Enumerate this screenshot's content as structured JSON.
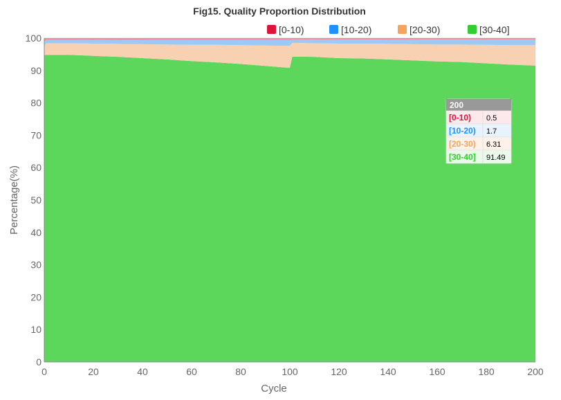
{
  "chart_data": {
    "type": "area",
    "stacked": true,
    "title": "Fig15. Quality Proportion Distribution",
    "xlabel": "Cycle",
    "ylabel": "Percentage(%)",
    "xlim": [
      0,
      200
    ],
    "ylim": [
      0,
      100
    ],
    "x_ticks": [
      0,
      20,
      40,
      60,
      80,
      100,
      120,
      140,
      160,
      180,
      200
    ],
    "y_ticks": [
      0,
      10,
      20,
      30,
      40,
      50,
      60,
      70,
      80,
      90,
      100
    ],
    "grid": true,
    "legend_position": "top-right",
    "x": [
      0,
      1,
      10,
      20,
      30,
      40,
      50,
      60,
      70,
      80,
      90,
      100,
      101,
      110,
      120,
      130,
      140,
      150,
      160,
      170,
      180,
      190,
      200
    ],
    "series": [
      {
        "name": "[0-10)",
        "color": "#dc143c",
        "fill": "#f08ca0",
        "values": [
          1.0,
          0.6,
          0.6,
          0.6,
          0.6,
          0.6,
          0.6,
          0.6,
          0.6,
          0.6,
          0.6,
          0.6,
          0.5,
          0.5,
          0.5,
          0.5,
          0.5,
          0.5,
          0.5,
          0.5,
          0.5,
          0.5,
          0.5
        ]
      },
      {
        "name": "[10-20)",
        "color": "#1e90ff",
        "fill": "#9ec9f5",
        "values": [
          1.2,
          1.0,
          1.0,
          1.1,
          1.2,
          1.3,
          1.4,
          1.5,
          1.5,
          1.6,
          1.7,
          1.8,
          1.0,
          1.1,
          1.2,
          1.2,
          1.3,
          1.4,
          1.5,
          1.5,
          1.6,
          1.7,
          1.7
        ]
      },
      {
        "name": "[20-30)",
        "color": "#f4a460",
        "fill": "#f8d1b3",
        "values": [
          3.0,
          3.6,
          3.6,
          3.8,
          4.0,
          4.3,
          4.6,
          5.0,
          5.4,
          5.8,
          6.3,
          6.8,
          4.2,
          4.2,
          4.5,
          4.6,
          4.8,
          5.0,
          5.2,
          5.4,
          5.7,
          6.0,
          6.31
        ]
      },
      {
        "name": "[30-40]",
        "color": "#32cd32",
        "fill": "#5cd75c",
        "values": [
          94.8,
          94.8,
          94.8,
          94.5,
          94.2,
          93.8,
          93.4,
          92.9,
          92.5,
          92.0,
          91.4,
          90.8,
          94.3,
          94.2,
          93.8,
          93.7,
          93.4,
          93.1,
          92.8,
          92.6,
          92.2,
          91.8,
          91.49
        ]
      }
    ]
  },
  "tooltip": {
    "header": "200",
    "rows": [
      {
        "label": "[0-10)",
        "value": "0.5",
        "color": "#dc143c",
        "bg": "#fbe9ec"
      },
      {
        "label": "[10-20)",
        "value": "1.7",
        "color": "#1e90ff",
        "bg": "#e8f3fe"
      },
      {
        "label": "[20-30)",
        "value": "6.31",
        "color": "#f4a460",
        "bg": "#fdf2ea"
      },
      {
        "label": "[30-40]",
        "value": "91.49",
        "color": "#32cd32",
        "bg": "#ebf9eb"
      }
    ]
  }
}
